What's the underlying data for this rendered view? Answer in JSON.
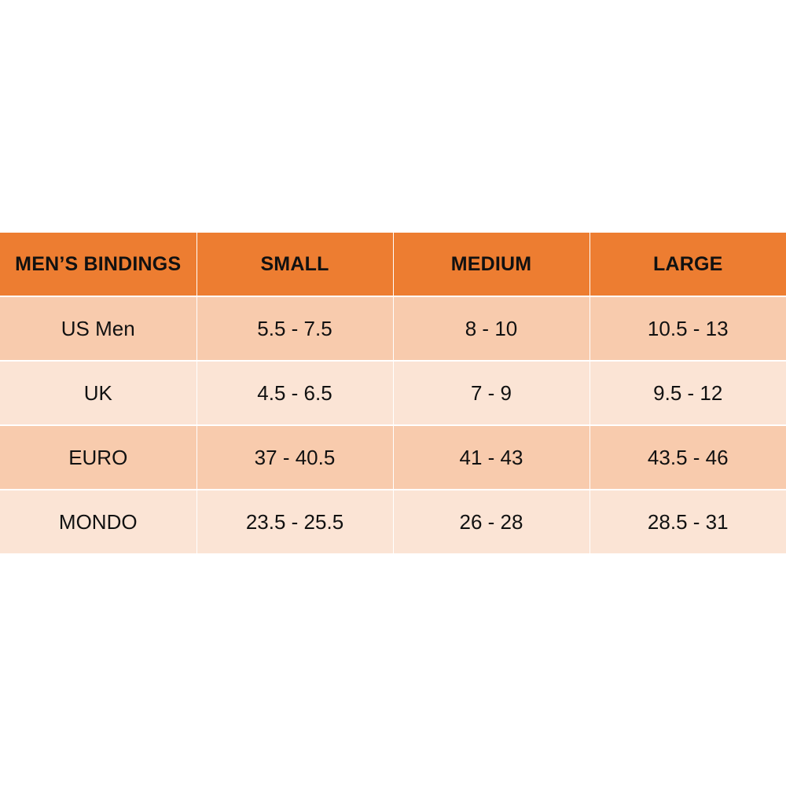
{
  "colors": {
    "header_bg": "#ED7D31",
    "row_dark_bg": "#F8CBAD",
    "row_light_bg": "#FBE4D5",
    "text": "#111111"
  },
  "table": {
    "headers": [
      "MEN’S BINDINGS",
      "SMALL",
      "MEDIUM",
      "LARGE"
    ],
    "rows": [
      [
        "US Men",
        "5.5 - 7.5",
        "8 - 10",
        "10.5 - 13"
      ],
      [
        "UK",
        "4.5 - 6.5",
        "7 - 9",
        "9.5 - 12"
      ],
      [
        "EURO",
        "37 - 40.5",
        "41 - 43",
        "43.5 - 46"
      ],
      [
        "MONDO",
        "23.5 - 25.5",
        "26 - 28",
        "28.5 - 31"
      ]
    ]
  }
}
